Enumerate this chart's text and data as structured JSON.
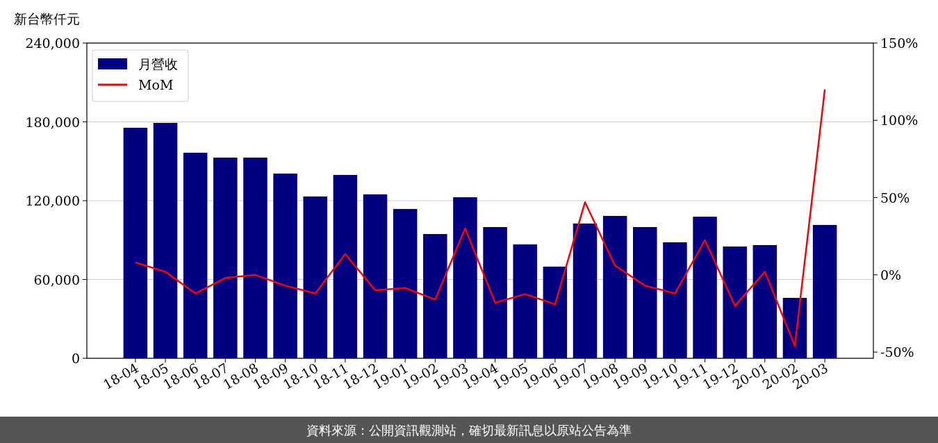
{
  "chart_data": {
    "type": "bar",
    "ylabel": "新台幣仟元",
    "categories": [
      "18-04",
      "18-05",
      "18-06",
      "18-07",
      "18-08",
      "18-09",
      "18-10",
      "18-11",
      "18-12",
      "19-01",
      "19-02",
      "19-03",
      "19-04",
      "19-05",
      "19-06",
      "19-07",
      "19-08",
      "19-09",
      "19-10",
      "19-11",
      "19-12",
      "20-01",
      "20-02",
      "20-03"
    ],
    "series": [
      {
        "name": "月營收",
        "color": "#000080",
        "values": [
          175500,
          179200,
          156500,
          152800,
          152800,
          140600,
          123200,
          139600,
          124800,
          113700,
          94600,
          122600,
          99900,
          86700,
          69800,
          102600,
          108400,
          99900,
          88300,
          107800,
          85100,
          86200,
          46000,
          101500
        ]
      },
      {
        "name": "MoM",
        "type": "line",
        "axis": "y2",
        "color": "#ff0000",
        "values": [
          8,
          2,
          -12,
          -2,
          0,
          -7,
          -12,
          13.5,
          -10,
          -8.5,
          -16,
          30,
          -18,
          -12.5,
          -19,
          47,
          6,
          -7,
          -12,
          22.5,
          -20,
          2,
          -46,
          120
        ]
      }
    ],
    "ylim": [
      0,
      240000
    ],
    "yticks": [
      {
        "value": 0,
        "label": "0"
      },
      {
        "value": 60000,
        "label": "60,000"
      },
      {
        "value": 120000,
        "label": "120,000"
      },
      {
        "value": 180000,
        "label": "180,000"
      },
      {
        "value": 240000,
        "label": "240,000"
      }
    ],
    "y2lim": [
      -54,
      150
    ],
    "y2ticks": [
      {
        "value": -50,
        "label": "-50%"
      },
      {
        "value": 0,
        "label": "0%"
      },
      {
        "value": 50,
        "label": "50%"
      },
      {
        "value": 100,
        "label": "100%"
      },
      {
        "value": 150,
        "label": "150%"
      }
    ],
    "grid": "y",
    "legend": "top left",
    "annotations": [
      "資料來源：公開資訊觀測站，確切最新訊息以原站公告為準"
    ]
  }
}
